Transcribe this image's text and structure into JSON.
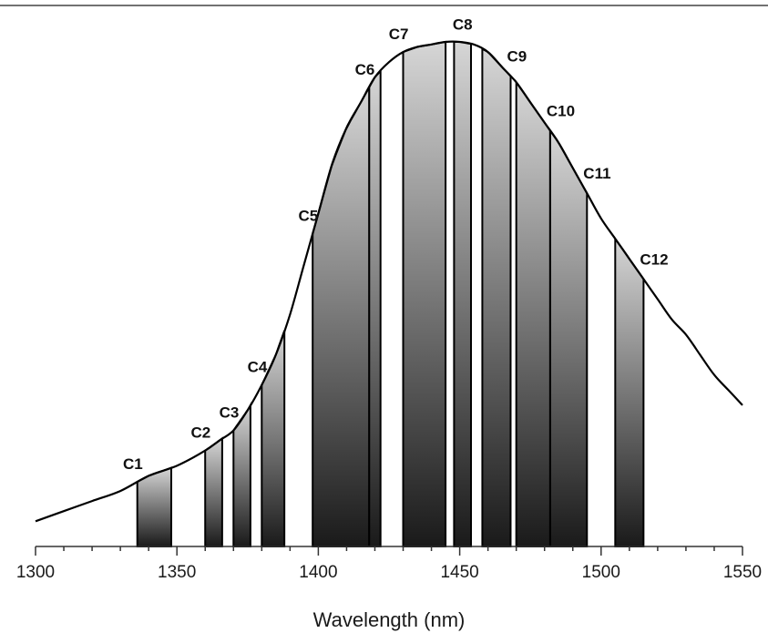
{
  "chart_data": {
    "type": "area",
    "title": "",
    "xlabel": "Wavelength (nm)",
    "ylabel": "",
    "xlim": [
      1300,
      1550
    ],
    "ylim": [
      0,
      1
    ],
    "x_ticks": [
      "1300",
      "1350",
      "1400",
      "1450",
      "1500",
      "1550"
    ],
    "grid": false,
    "curve": {
      "x": [
        1300,
        1310,
        1320,
        1330,
        1340,
        1350,
        1360,
        1365,
        1370,
        1375,
        1380,
        1385,
        1390,
        1395,
        1400,
        1405,
        1410,
        1415,
        1420,
        1425,
        1430,
        1435,
        1440,
        1445,
        1450,
        1455,
        1460,
        1465,
        1470,
        1475,
        1480,
        1485,
        1490,
        1495,
        1500,
        1505,
        1510,
        1515,
        1520,
        1525,
        1530,
        1535,
        1540,
        1545,
        1550
      ],
      "y": [
        0.05,
        0.07,
        0.09,
        0.11,
        0.14,
        0.16,
        0.19,
        0.21,
        0.23,
        0.27,
        0.32,
        0.38,
        0.46,
        0.56,
        0.66,
        0.76,
        0.83,
        0.88,
        0.93,
        0.96,
        0.98,
        0.99,
        0.995,
        1.0,
        1.0,
        0.995,
        0.98,
        0.95,
        0.92,
        0.88,
        0.84,
        0.8,
        0.75,
        0.7,
        0.65,
        0.61,
        0.57,
        0.53,
        0.49,
        0.45,
        0.42,
        0.38,
        0.34,
        0.31,
        0.28
      ]
    },
    "bands": [
      {
        "label": "C1",
        "x_start": 1336,
        "x_end": 1348
      },
      {
        "label": "C2",
        "x_start": 1360,
        "x_end": 1366
      },
      {
        "label": "C3",
        "x_start": 1370,
        "x_end": 1376
      },
      {
        "label": "C4",
        "x_start": 1380,
        "x_end": 1388
      },
      {
        "label": "C5",
        "x_start": 1398,
        "x_end": 1418
      },
      {
        "label": "C6",
        "x_start": 1418,
        "x_end": 1422
      },
      {
        "label": "C7",
        "x_start": 1430,
        "x_end": 1445
      },
      {
        "label": "C8",
        "x_start": 1448,
        "x_end": 1454
      },
      {
        "label": "C9",
        "x_start": 1458,
        "x_end": 1468
      },
      {
        "label": "C10",
        "x_start": 1470,
        "x_end": 1482
      },
      {
        "label": "C11",
        "x_start": 1482,
        "x_end": 1495
      },
      {
        "label": "C12",
        "x_start": 1505,
        "x_end": 1515
      }
    ],
    "colors": {
      "curve": "#000000",
      "band_top": "#d6d6d6",
      "band_bottom": "#1a1a1a",
      "axis": "#333333"
    }
  }
}
